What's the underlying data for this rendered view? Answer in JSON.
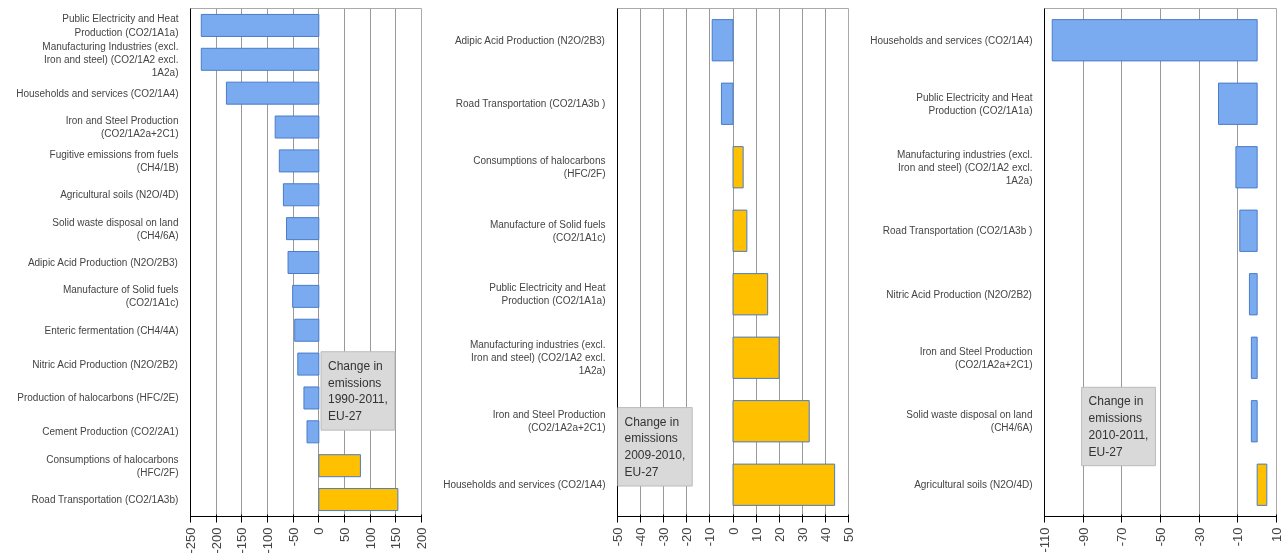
{
  "chart_data": [
    {
      "type": "bar",
      "orientation": "horizontal",
      "grid": "x",
      "categories": [
        "Public Electricity and Heat Production (CO2/1A1a)",
        "Manufacturing Industries (excl. Iron and steel) (CO2/1A2 excl. 1A2a)",
        "Households and services (CO2/1A4)",
        "Iron and Steel Production (CO2/1A2a+2C1)",
        "Fugitive emissions from fuels (CH4/1B)",
        "Agricultural soils (N2O/4D)",
        "Solid waste disposal on land (CH4/6A)",
        "Adipic Acid Production (N2O/2B3)",
        "Manufacture of Solid fuels (CO2/1A1c)",
        "Enteric fermentation (CH4/4A)",
        "Nitric Acid Production (N2O/2B2)",
        "Production of halocarbons (HFC/2E)",
        "Cement Production (CO2/2A1)",
        "Consumptions of halocarbons (HFC/2F)",
        "Road Transportation (CO2/1A3b)"
      ],
      "values": [
        -229,
        -229,
        -180,
        -85,
        -77,
        -69,
        -63,
        -60,
        -51,
        -47,
        -41,
        -29,
        -23,
        81,
        154
      ],
      "colors": [
        "#7aaaf0",
        "#7aaaf0",
        "#7aaaf0",
        "#7aaaf0",
        "#7aaaf0",
        "#7aaaf0",
        "#7aaaf0",
        "#7aaaf0",
        "#7aaaf0",
        "#7aaaf0",
        "#7aaaf0",
        "#7aaaf0",
        "#7aaaf0",
        "#ffc000",
        "#ffc000"
      ],
      "xlim": [
        -250,
        200
      ],
      "xticks": [
        -250,
        -200,
        -150,
        -100,
        -50,
        0,
        50,
        100,
        150,
        200
      ],
      "annotations": [
        "Change in emissions 1990-2011, EU-27"
      ]
    },
    {
      "type": "bar",
      "orientation": "horizontal",
      "grid": "x",
      "categories": [
        "Adipic Acid Production (N2O/2B3)",
        "Road Transportation (CO2/1A3b )",
        "Consumptions of halocarbons (HFC/2F)",
        "Manufacture of Solid fuels (CO2/1A1c)",
        "Public Electricity and Heat Production (CO2/1A1a)",
        "Manufacturing industries (excl. Iron and steel) (CO2/1A2 excl. 1A2a)",
        "Iron and Steel Production (CO2/1A2a+2C1)",
        "Households and services (CO2/1A4)"
      ],
      "values": [
        -9,
        -5,
        4.4,
        6,
        15,
        20,
        33,
        44
      ],
      "colors": [
        "#7aaaf0",
        "#7aaaf0",
        "#ffc000",
        "#ffc000",
        "#ffc000",
        "#ffc000",
        "#ffc000",
        "#ffc000"
      ],
      "xlim": [
        -50,
        50
      ],
      "xticks": [
        -50,
        -40,
        -30,
        -20,
        -10,
        0,
        10,
        20,
        30,
        40,
        50
      ],
      "annotations": [
        "Change in emissions 2009-2010, EU-27"
      ]
    },
    {
      "type": "bar",
      "orientation": "horizontal",
      "grid": "x",
      "categories": [
        "Households and services (CO2/1A4)",
        "Public Electricity and Heat Production (CO2/1A1a)",
        "Manufacturing industries (excl. Iron and steel) (CO2/1A2 excl. 1A2a)",
        "Road Transportation (CO2/1A3b )",
        "Nitric Acid Production (N2O/2B2)",
        "Iron and Steel Production (CO2/1A2a+2C1)",
        "Solid waste disposal on land (CH4/6A)",
        "Agricultural soils (N2O/4D)"
      ],
      "values": [
        -106,
        -20,
        -11,
        -9,
        -4,
        -3,
        -3,
        5
      ],
      "colors": [
        "#7aaaf0",
        "#7aaaf0",
        "#7aaaf0",
        "#7aaaf0",
        "#7aaaf0",
        "#7aaaf0",
        "#7aaaf0",
        "#ffc000"
      ],
      "xlim": [
        -110,
        10
      ],
      "xticks": [
        -110,
        -90,
        -70,
        -50,
        -30,
        -10,
        10
      ],
      "annotations": [
        "Change in emissions 2010-2011, EU-27"
      ]
    }
  ]
}
